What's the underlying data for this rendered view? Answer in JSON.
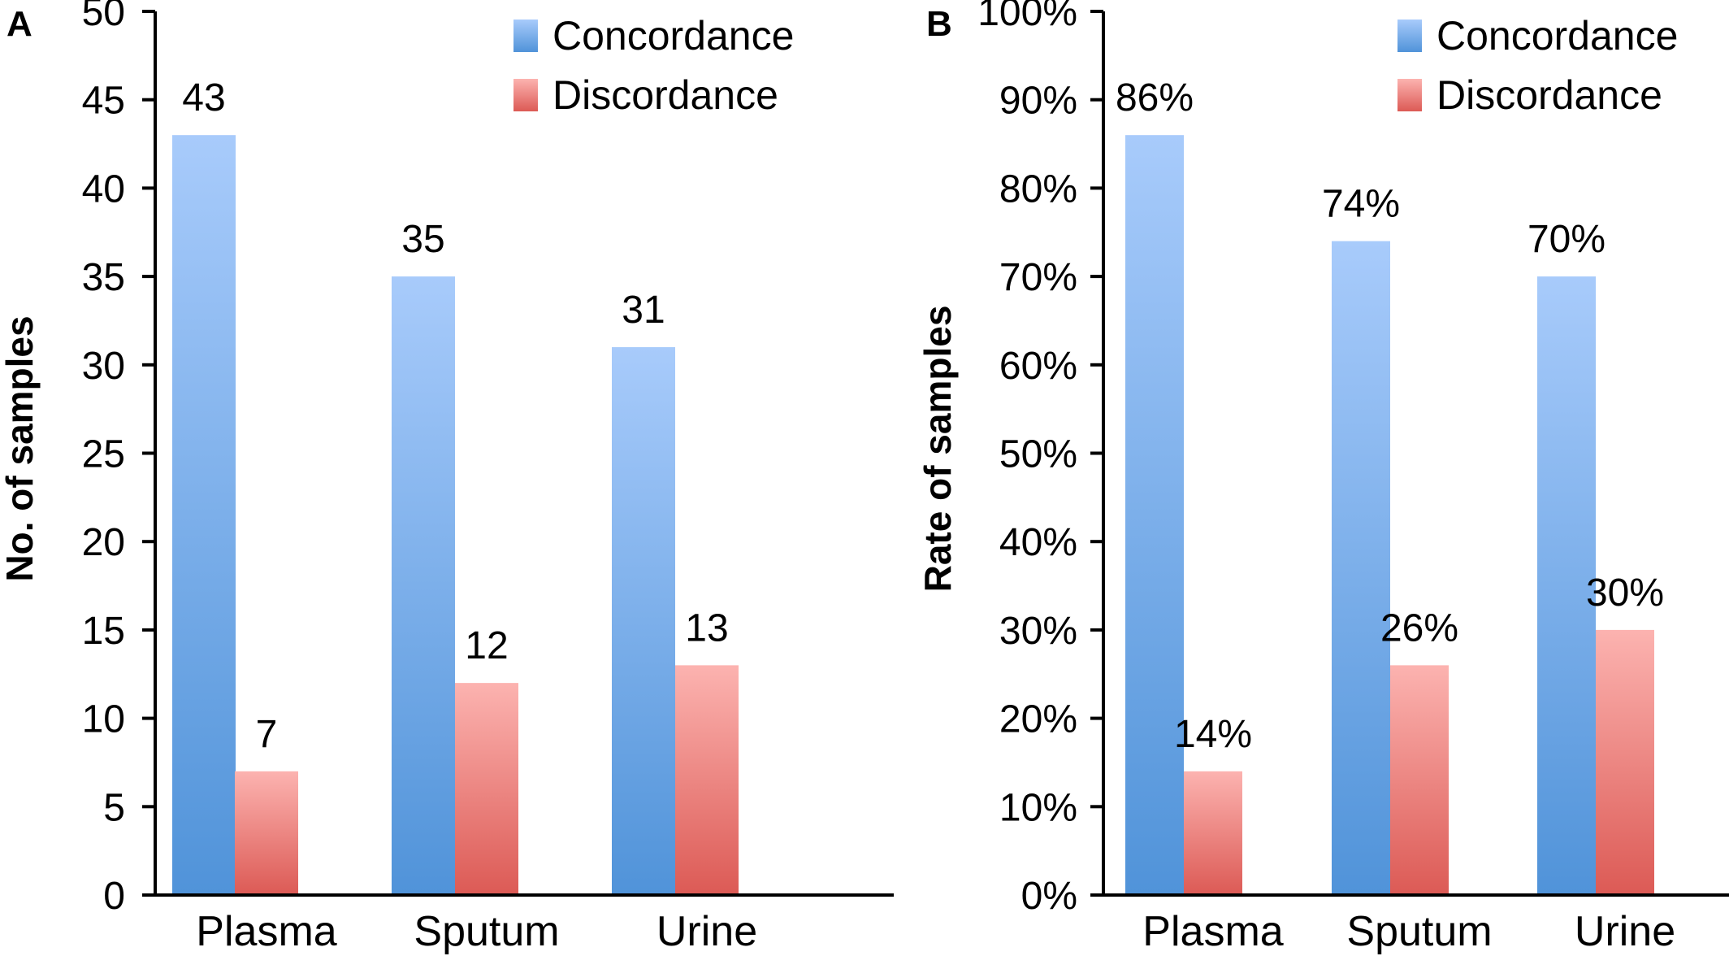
{
  "colors": {
    "concordance_top": "#a8cbfb",
    "concordance_bottom": "#5093d9",
    "discordance_top": "#fcb3b0",
    "discordance_bottom": "#dc5a55",
    "axis": "#000000"
  },
  "chart_data": [
    {
      "type": "bar",
      "panel_label": "A",
      "categories": [
        "Plasma",
        "Sputum",
        "Urine"
      ],
      "series": [
        {
          "name": "Concordance",
          "values": [
            43,
            35,
            31
          ]
        },
        {
          "name": "Discordance",
          "values": [
            7,
            12,
            13
          ]
        }
      ],
      "data_labels": [
        [
          "43",
          "35",
          "31"
        ],
        [
          "7",
          "12",
          "13"
        ]
      ],
      "ylabel": "No. of samples",
      "ylim": [
        0,
        50
      ],
      "yticks": [
        0,
        5,
        10,
        15,
        20,
        25,
        30,
        35,
        40,
        45,
        50
      ],
      "ytick_labels": [
        "0",
        "5",
        "10",
        "15",
        "20",
        "25",
        "30",
        "35",
        "40",
        "45",
        "50"
      ],
      "legend": [
        "Concordance",
        "Discordance"
      ],
      "legend_position": "top-right",
      "grid": false
    },
    {
      "type": "bar",
      "panel_label": "B",
      "categories": [
        "Plasma",
        "Sputum",
        "Urine"
      ],
      "series": [
        {
          "name": "Concordance",
          "values": [
            86,
            74,
            70
          ]
        },
        {
          "name": "Discordance",
          "values": [
            14,
            26,
            30
          ]
        }
      ],
      "data_labels": [
        [
          "86%",
          "74%",
          "70%"
        ],
        [
          "14%",
          "26%",
          "30%"
        ]
      ],
      "ylabel": "Rate of samples",
      "ylim": [
        0,
        100
      ],
      "yticks": [
        0,
        10,
        20,
        30,
        40,
        50,
        60,
        70,
        80,
        90,
        100
      ],
      "ytick_labels": [
        "0%",
        "10%",
        "20%",
        "30%",
        "40%",
        "50%",
        "60%",
        "70%",
        "80%",
        "90%",
        "100%"
      ],
      "legend": [
        "Concordance",
        "Discordance"
      ],
      "legend_position": "top-right",
      "grid": false
    }
  ]
}
